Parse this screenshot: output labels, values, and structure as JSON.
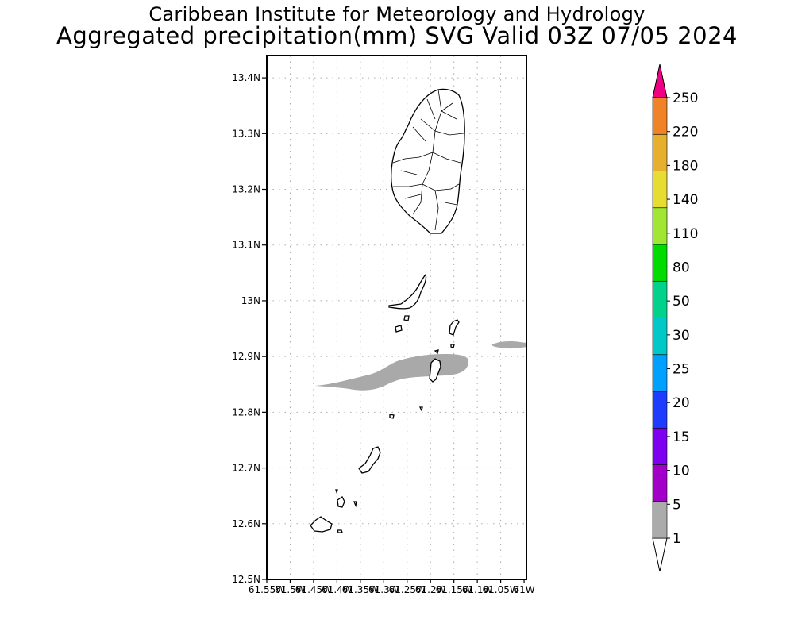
{
  "title": {
    "line1": "Caribbean Institute for Meteorology and Hydrology",
    "line2": "Aggregated precipitation(mm) SVG Valid 03Z 07/05 2024"
  },
  "map": {
    "region": "St Vincent and the Grenadines",
    "lat_ticks": [
      "12.5N",
      "12.6N",
      "12.7N",
      "12.8N",
      "12.9N",
      "13N",
      "13.1N",
      "13.2N",
      "13.3N",
      "13.4N"
    ],
    "lon_ticks": [
      "61.55W",
      "61.5W",
      "61.45W",
      "61.4W",
      "61.35W",
      "61.3W",
      "61.25W",
      "61.2W",
      "61.15W",
      "61.1W",
      "61.05W",
      "61W"
    ],
    "grid": true,
    "precip_shading_color": "#a9a9a9"
  },
  "colorbar": {
    "levels": [
      "1",
      "5",
      "10",
      "15",
      "20",
      "25",
      "30",
      "50",
      "80",
      "110",
      "140",
      "180",
      "220",
      "250"
    ],
    "colors": [
      "#ababab",
      "#a200c8",
      "#7d00f0",
      "#1e3cff",
      "#00a0ff",
      "#00c8c8",
      "#00d28c",
      "#00dc00",
      "#a0e632",
      "#e6dc32",
      "#e6af2d",
      "#f08228",
      "#fa3c3c",
      "#f00082"
    ]
  }
}
